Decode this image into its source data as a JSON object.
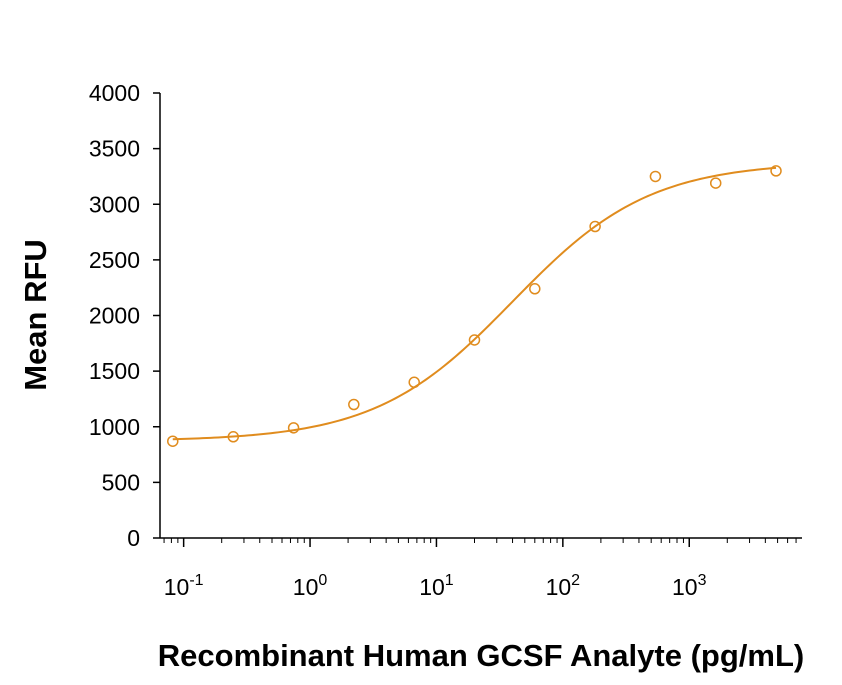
{
  "chart_data": {
    "type": "scatter",
    "xlabel": "Recombinant Human GCSF Analyte (pg/mL)",
    "ylabel": "Mean RFU",
    "x_scale": "log10",
    "xlim": [
      0.065,
      7800
    ],
    "ylim": [
      0,
      4000
    ],
    "y_ticks": [
      0,
      500,
      1000,
      1500,
      2000,
      2500,
      3000,
      3500,
      4000
    ],
    "x_ticks": [
      {
        "base": "10",
        "exp": "-1",
        "value": 0.1
      },
      {
        "base": "10",
        "exp": "0",
        "value": 1
      },
      {
        "base": "10",
        "exp": "1",
        "value": 10
      },
      {
        "base": "10",
        "exp": "2",
        "value": 100
      },
      {
        "base": "10",
        "exp": "3",
        "value": 1000
      }
    ],
    "series": [
      {
        "points": [
          {
            "x": 0.082,
            "y": 870
          },
          {
            "x": 0.247,
            "y": 910
          },
          {
            "x": 0.741,
            "y": 990
          },
          {
            "x": 2.22,
            "y": 1200
          },
          {
            "x": 6.67,
            "y": 1400
          },
          {
            "x": 20.0,
            "y": 1780
          },
          {
            "x": 60.0,
            "y": 2240
          },
          {
            "x": 180.0,
            "y": 2800
          },
          {
            "x": 540.0,
            "y": 3250
          },
          {
            "x": 1620.0,
            "y": 3190
          },
          {
            "x": 4860.0,
            "y": 3300
          }
        ],
        "fit": {
          "type": "4PL",
          "bottom": 870,
          "top": 3380,
          "ec50": 40,
          "hill": 0.8
        }
      }
    ],
    "colors": {
      "series": "#e08c1e",
      "axis": "#000000"
    },
    "grid": false,
    "legend": "none"
  }
}
